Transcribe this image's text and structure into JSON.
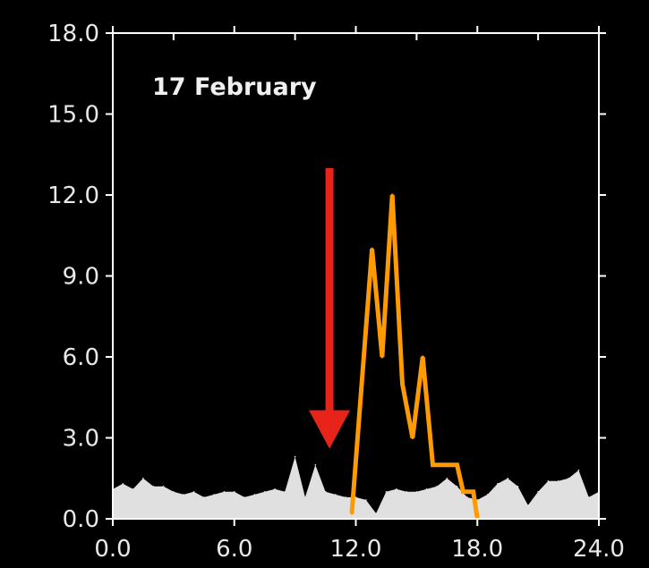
{
  "chart_data": {
    "type": "line",
    "title": "17 February",
    "xlabel": "",
    "ylabel": "",
    "xlim": [
      0,
      24
    ],
    "ylim": [
      0,
      18
    ],
    "x_ticks": [
      "0.0",
      "6.0",
      "12.0",
      "18.0",
      "24.0"
    ],
    "y_ticks": [
      "0.0",
      "3.0",
      "6.0",
      "9.0",
      "12.0",
      "15.0",
      "18.0"
    ],
    "grid": false,
    "colors": {
      "background": "#000000",
      "frame": "#ffffff",
      "area": "#e0e0e0",
      "line": "#ff9a00",
      "arrow": "#e8241a"
    },
    "series": [
      {
        "type": "area",
        "x": [
          0.0,
          0.5,
          1.0,
          1.5,
          2.0,
          2.5,
          3.0,
          3.5,
          4.0,
          4.5,
          5.0,
          5.5,
          6.0,
          6.5,
          7.0,
          7.5,
          8.0,
          8.5,
          9.0,
          9.5,
          10.0,
          10.5,
          11.0,
          11.5,
          12.0,
          12.5,
          13.0,
          13.5,
          14.0,
          14.5,
          15.0,
          15.5,
          16.0,
          16.5,
          17.0,
          17.5,
          18.0,
          18.5,
          19.0,
          19.5,
          20.0,
          20.5,
          21.0,
          21.5,
          22.0,
          22.5,
          23.0,
          23.5,
          24.0
        ],
        "values": [
          1.1,
          1.3,
          1.1,
          1.5,
          1.2,
          1.2,
          1.0,
          0.9,
          1.0,
          0.8,
          0.9,
          1.0,
          1.0,
          0.8,
          0.9,
          1.0,
          1.1,
          1.0,
          2.3,
          0.8,
          2.0,
          1.0,
          0.9,
          0.8,
          0.8,
          0.7,
          0.2,
          1.0,
          1.1,
          1.0,
          1.0,
          1.1,
          1.2,
          1.5,
          1.2,
          0.8,
          0.7,
          0.9,
          1.3,
          1.5,
          1.2,
          0.5,
          1.0,
          1.4,
          1.4,
          1.5,
          1.8,
          0.8,
          1.0
        ]
      },
      {
        "type": "line",
        "x": [
          11.8,
          12.8,
          13.3,
          13.8,
          14.3,
          14.8,
          15.3,
          15.8,
          16.5,
          17.0,
          17.3,
          17.8,
          18.0
        ],
        "values": [
          0.2,
          10.0,
          6.0,
          12.0,
          5.0,
          3.0,
          6.0,
          2.0,
          2.0,
          2.0,
          1.0,
          1.0,
          0.0
        ]
      }
    ],
    "annotations": [
      {
        "type": "arrow",
        "x": 10.7,
        "y_start": 13.0,
        "y_end": 2.6
      }
    ]
  }
}
